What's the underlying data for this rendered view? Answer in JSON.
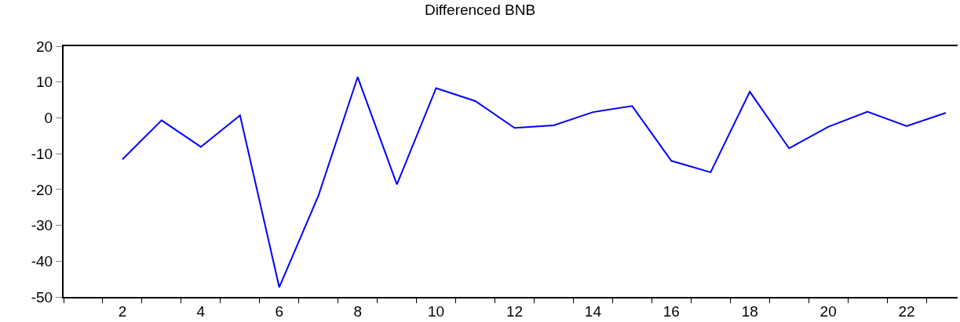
{
  "chart_data": {
    "type": "line",
    "title": "Differenced BNB",
    "x": [
      2,
      3,
      4,
      5,
      6,
      7,
      8,
      9,
      10,
      11,
      12,
      13,
      14,
      15,
      16,
      17,
      18,
      19,
      20,
      21,
      22,
      23
    ],
    "series": [
      {
        "color": "#0000ff",
        "values": [
          -11.6,
          -0.7,
          -8.1,
          0.7,
          -47.3,
          -21.7,
          11.4,
          -18.6,
          8.3,
          4.7,
          -2.8,
          -2.1,
          1.6,
          3.3,
          -12.0,
          -15.2,
          7.3,
          -8.5,
          -2.5,
          1.7,
          -2.3,
          1.4
        ]
      }
    ],
    "xlim": [
      0.5,
      23.3
    ],
    "xticks": [
      2,
      4,
      6,
      8,
      10,
      12,
      14,
      16,
      18,
      20,
      22,
      {
        "value": 0.5,
        "label": null
      },
      {
        "value": 1.5,
        "label": null
      },
      {
        "value": 2.5,
        "label": null
      },
      {
        "value": 3.5,
        "label": null
      },
      {
        "value": 4.5,
        "label": null
      },
      {
        "value": 5.5,
        "label": null
      },
      {
        "value": 6.5,
        "label": null
      },
      {
        "value": 7.5,
        "label": null
      },
      {
        "value": 8.5,
        "label": null
      },
      {
        "value": 9.5,
        "label": null
      },
      {
        "value": 10.5,
        "label": null
      },
      {
        "value": 11.5,
        "label": null
      },
      {
        "value": 12.5,
        "label": null
      },
      {
        "value": 13.5,
        "label": null
      },
      {
        "value": 14.5,
        "label": null
      },
      {
        "value": 15.5,
        "label": null
      },
      {
        "value": 16.5,
        "label": null
      },
      {
        "value": 17.5,
        "label": null
      },
      {
        "value": 18.5,
        "label": null
      },
      {
        "value": 19.5,
        "label": null
      },
      {
        "value": 20.5,
        "label": null
      },
      {
        "value": 21.5,
        "label": null
      },
      {
        "value": 22.5,
        "label": null
      }
    ],
    "ylim": [
      -50,
      20
    ],
    "yticks": [
      -50,
      -40,
      -30,
      -20,
      -10,
      0,
      10,
      20
    ],
    "marker": "none",
    "line_style": "solid"
  }
}
